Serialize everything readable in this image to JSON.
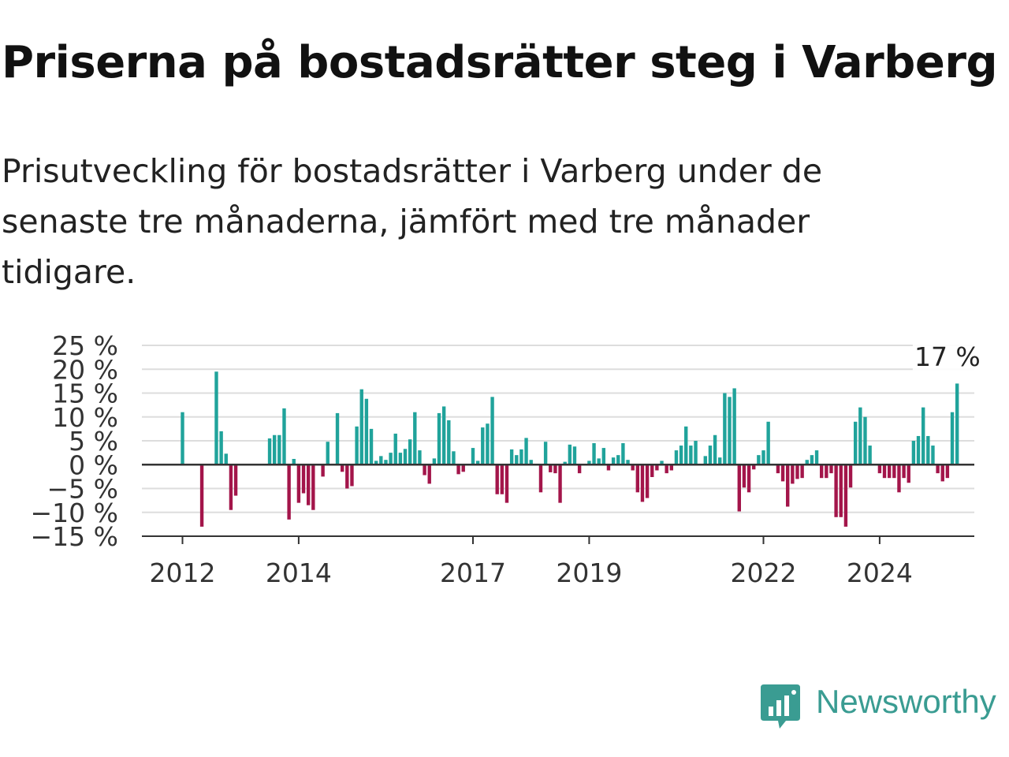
{
  "header": {
    "title": "Priserna på bostadsrätter steg i Varberg",
    "subtitle": "Prisutveckling för bostadsrätter i Varberg under de senaste tre månaderna, jämfört med tre månader tidigare."
  },
  "colors": {
    "positive": "#20a39b",
    "negative": "#a3154a",
    "grid": "#dddddd",
    "axis": "#333333"
  },
  "brand": {
    "name": "Newsworthy",
    "icon": "newsworthy-bar-chart-icon"
  },
  "chart_data": {
    "type": "bar",
    "y_unit": "%",
    "ylim": [
      -15,
      25
    ],
    "yticks": [
      -15,
      -10,
      -5,
      0,
      5,
      10,
      15,
      20,
      25
    ],
    "ytick_labels": [
      "−15 %",
      "−10 %",
      "−5 %",
      "0 %",
      "5 %",
      "10 %",
      "15 %",
      "20 %",
      "25 %"
    ],
    "xticks": [
      2012,
      2014,
      2017,
      2019,
      2022,
      2024
    ],
    "grid": true,
    "annotation": {
      "label": "17 %",
      "value": 17,
      "date": "2025-03"
    },
    "start_date": "2012-01",
    "values": [
      11,
      0,
      0,
      0,
      -13,
      0,
      0,
      19.5,
      7,
      2.3,
      -9.5,
      -6.5,
      0,
      0,
      0,
      0,
      0,
      0,
      5.5,
      6.2,
      6.2,
      11.8,
      -11.5,
      1.2,
      -8,
      -6,
      -8.5,
      -9.5,
      0,
      -2.5,
      4.8,
      0,
      10.8,
      -1.5,
      -5,
      -4.5,
      8,
      15.8,
      13.8,
      7.5,
      0.8,
      1.8,
      1,
      2.5,
      6.5,
      2.5,
      3.3,
      5.3,
      11,
      3,
      -2.2,
      -4,
      1.3,
      10.8,
      12.2,
      9.3,
      2.8,
      -2,
      -1.5,
      0,
      3.5,
      0.8,
      7.8,
      8.6,
      14.2,
      -6.2,
      -6.2,
      -8,
      3.2,
      2,
      3.2,
      5.6,
      1,
      0,
      -5.8,
      4.8,
      -1.6,
      -1.8,
      -8,
      0.6,
      4.2,
      3.8,
      -1.8,
      0,
      0.8,
      4.5,
      1.3,
      3.5,
      -1.2,
      1.5,
      2,
      4.5,
      1,
      -1.2,
      -5.8,
      -7.8,
      -7,
      -2.6,
      -1.2,
      0.8,
      -1.8,
      -1.2,
      3,
      4,
      8,
      4,
      5,
      0,
      1.8,
      4,
      6.2,
      1.5,
      15,
      14.2,
      16,
      -9.8,
      -4.8,
      -5.8,
      -1,
      2,
      3,
      9,
      0,
      -1.8,
      -3.5,
      -8.8,
      -4,
      -3,
      -2.8,
      1,
      2,
      3,
      -2.8,
      -2.8,
      -1.8,
      -11,
      -11,
      -13,
      -4.8,
      9,
      12,
      10,
      4,
      0,
      -1.8,
      -2.8,
      -2.8,
      -2.8,
      -5.8,
      -2.8,
      -3.8,
      5,
      6,
      12,
      6,
      4,
      -1.8,
      -3.5,
      -2.8,
      11,
      17
    ]
  }
}
